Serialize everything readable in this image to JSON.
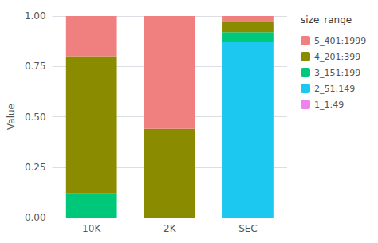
{
  "chart_data": {
    "type": "bar",
    "stacked": true,
    "categories": [
      "10K",
      "2K",
      "SEC"
    ],
    "series": [
      {
        "name": "1_1:49",
        "color": "#EE82EE",
        "values": [
          0.0,
          0.0,
          0.0
        ]
      },
      {
        "name": "2_51:149",
        "color": "#1DC8F0",
        "values": [
          0.0,
          0.0,
          0.87
        ]
      },
      {
        "name": "3_151:199",
        "color": "#00C87A",
        "values": [
          0.12,
          0.0,
          0.05
        ]
      },
      {
        "name": "4_201:399",
        "color": "#8B8B00",
        "values": [
          0.68,
          0.44,
          0.05
        ]
      },
      {
        "name": "5_401:1999",
        "color": "#F08080",
        "values": [
          0.2,
          0.56,
          0.03
        ]
      }
    ],
    "ylabel": "Value",
    "ylim": [
      0.0,
      1.0
    ],
    "yticks": [
      {
        "value": 0.0,
        "label": "0.00"
      },
      {
        "value": 0.25,
        "label": "0.25"
      },
      {
        "value": 0.5,
        "label": "0.50"
      },
      {
        "value": 0.75,
        "label": "0.75"
      },
      {
        "value": 1.0,
        "label": "1.00"
      }
    ],
    "legend_title": "size_range",
    "legend": "right",
    "grid": true
  }
}
